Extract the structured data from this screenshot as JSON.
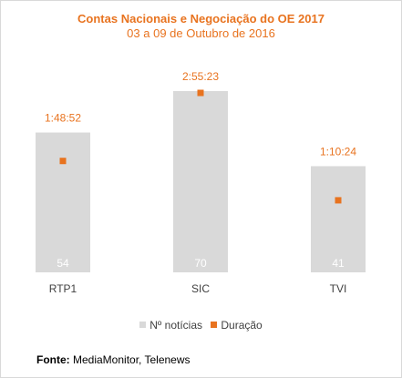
{
  "chart_data": {
    "type": "bar",
    "title": "Contas Nacionais e Negociação do OE 2017",
    "subtitle": "03 a 09 de Outubro de 2016",
    "categories": [
      "RTP1",
      "SIC",
      "TVI"
    ],
    "series": [
      {
        "name": "Nº notícias",
        "type": "bar",
        "values": [
          54,
          70,
          41
        ],
        "color": "#d9d9d9"
      },
      {
        "name": "Duração",
        "type": "marker",
        "values": [
          6532,
          10523,
          4224
        ],
        "labels": [
          "1:48:52",
          "2:55:23",
          "1:10:24"
        ],
        "color": "#e8731f"
      }
    ],
    "legend": "bottom",
    "grid": false
  },
  "source": {
    "label": "Fonte:",
    "text": "MediaMonitor, Telenews"
  }
}
